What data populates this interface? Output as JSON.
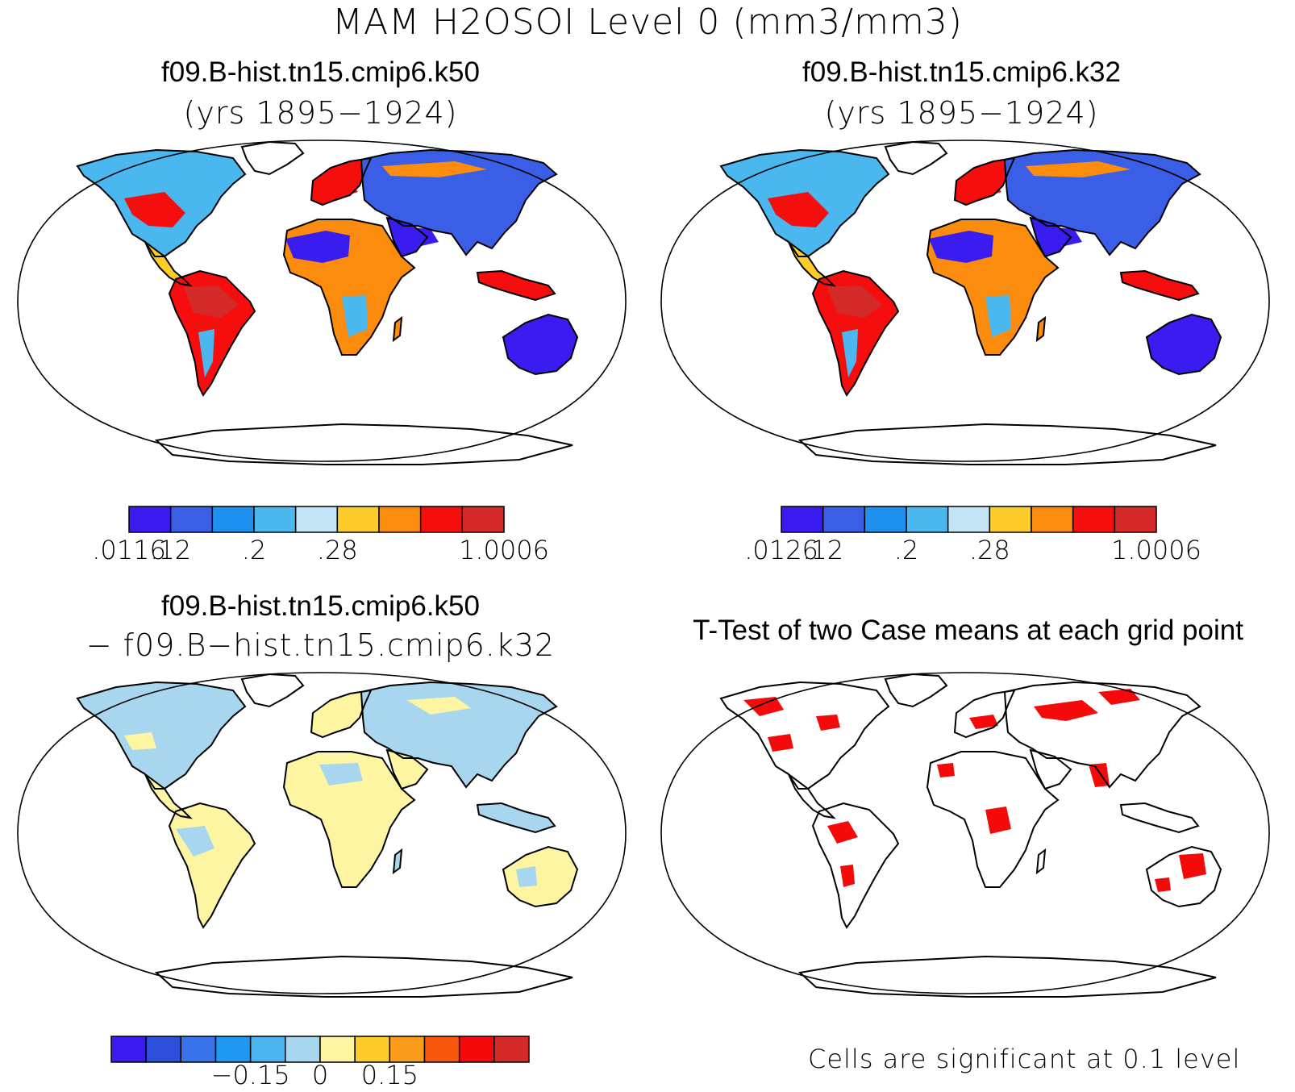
{
  "figure": {
    "title": "MAM H2OSOI Level 0 (mm3/mm3)"
  },
  "panels": {
    "top_left": {
      "title": "f09.B-hist.tn15.cmip6.k50",
      "subtitle": "(yrs 1895−1924)",
      "colorbar": {
        "colors": [
          "#3a1cf0",
          "#3a5ee6",
          "#1e90f0",
          "#4ab8ee",
          "#c4e4f6",
          "#fbcc2a",
          "#fb8c0e",
          "#f60e0e",
          "#d52a2a"
        ],
        "labels": [
          ".0116",
          ".12",
          ".2",
          ".28",
          "1.0006"
        ],
        "label_boundaries": [
          0,
          1,
          3,
          5,
          9
        ]
      }
    },
    "top_right": {
      "title": "f09.B-hist.tn15.cmip6.k32",
      "subtitle": "(yrs 1895−1924)",
      "colorbar": {
        "colors": [
          "#3a1cf0",
          "#3a5ee6",
          "#1e90f0",
          "#4ab8ee",
          "#c4e4f6",
          "#fbcc2a",
          "#fb8c0e",
          "#f60e0e",
          "#d52a2a"
        ],
        "labels": [
          ".0126",
          ".12",
          ".2",
          ".28",
          "1.0006"
        ],
        "label_boundaries": [
          0,
          1,
          3,
          5,
          9
        ]
      }
    },
    "bottom_left": {
      "title": "f09.B-hist.tn15.cmip6.k50",
      "subtitle": "− f09.B−hist.tn15.cmip6.k32",
      "colorbar": {
        "colors": [
          "#3a1cf0",
          "#2c4ed8",
          "#3a74ea",
          "#1e98f0",
          "#4cb4ee",
          "#a8d6ee",
          "#fdf5a2",
          "#fbcc2a",
          "#fb9c1c",
          "#f7580e",
          "#f40a0a",
          "#d52a2a"
        ],
        "labels": [
          "−0.15",
          "0",
          "0.15"
        ],
        "label_boundaries": [
          4,
          6,
          8
        ]
      }
    },
    "bottom_right": {
      "title": "T-Test of two Case means at each grid point",
      "note": "Cells are significant at 0.1 level",
      "significant_color": "#f40a0a"
    }
  },
  "map_colors": {
    "continent_outline": "#000000",
    "ocean": "#ffffff",
    "k50_dry": "#3a1cf0",
    "k50_wet": "#e8201a",
    "diff_positive": "#fdf5a2",
    "diff_negative": "#a8d6ee"
  }
}
